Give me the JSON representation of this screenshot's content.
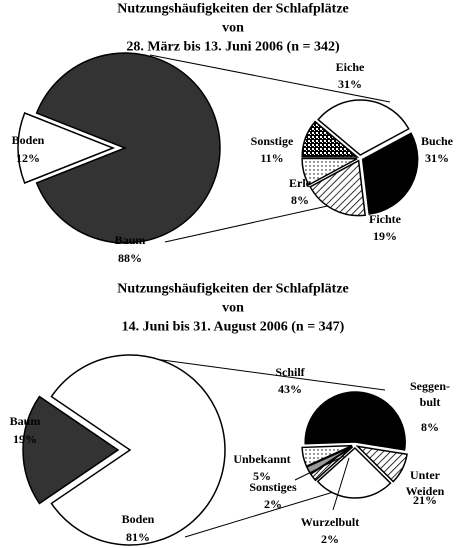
{
  "chart_data": [
    {
      "type": "pie-of-pie",
      "title": "Nutzungshäufigkeiten der Schlafplätze von\n28. März bis 13. Juni 2006 (n = 342)",
      "main": {
        "categories": [
          "Boden",
          "Baum"
        ],
        "values": [
          12,
          88
        ],
        "value_labels": [
          "12%",
          "88%"
        ],
        "colors": [
          "white",
          "#333333"
        ]
      },
      "sub": {
        "categories": [
          "Eiche",
          "Buche",
          "Fichte",
          "Erle",
          "Sonstige"
        ],
        "values": [
          31,
          31,
          19,
          8,
          11
        ],
        "value_labels": [
          "31%",
          "31%",
          "19%",
          "8%",
          "11%"
        ],
        "colors": [
          "white",
          "black",
          "hatch",
          "dots",
          "checker"
        ]
      }
    },
    {
      "type": "pie-of-pie",
      "title": "Nutzungshäufigkeiten der Schlafplätze von\n14. Juni bis 31. August 2006 (n = 347)",
      "main": {
        "categories": [
          "Baum",
          "Boden"
        ],
        "values": [
          19,
          81
        ],
        "value_labels": [
          "19%",
          "81%"
        ],
        "colors": [
          "#333333",
          "white"
        ]
      },
      "sub": {
        "categories": [
          "Schilf",
          "Seggen-\nbult",
          "Unter Weiden",
          "Wurzelbult",
          "Sonstiges",
          "Unbekannt"
        ],
        "values": [
          43,
          8,
          21,
          2,
          2,
          5
        ],
        "value_labels": [
          "43%",
          "8%",
          "21%",
          "2%",
          "2%",
          "5%"
        ],
        "colors": [
          "black",
          "hatch",
          "white",
          "darkhatch",
          "#999999",
          "dots"
        ]
      }
    }
  ]
}
